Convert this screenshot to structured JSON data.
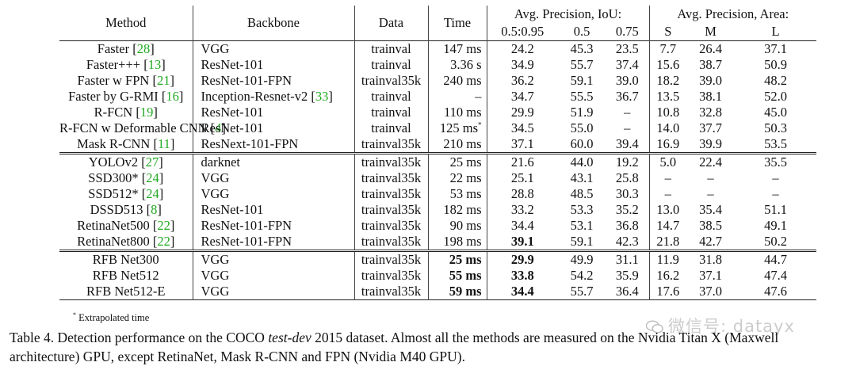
{
  "header": {
    "method": "Method",
    "backbone": "Backbone",
    "data": "Data",
    "time": "Time",
    "ap_iou": "Avg. Precision, IoU:",
    "ap_area": "Avg. Precision, Area:",
    "iou_cols": [
      "0.5:0.95",
      "0.5",
      "0.75"
    ],
    "area_cols": [
      "S",
      "M",
      "L"
    ]
  },
  "groups": [
    [
      {
        "method": "Faster",
        "cite": "28",
        "backbone": "VGG",
        "data": "trainval",
        "time": "147 ms",
        "ap": "24.2",
        "ap50": "45.3",
        "ap75": "23.5",
        "s": "7.7",
        "m": "26.4",
        "l": "37.1"
      },
      {
        "method": "Faster+++",
        "cite": "13",
        "backbone": "ResNet-101",
        "data": "trainval",
        "time": "3.36 s",
        "ap": "34.9",
        "ap50": "55.7",
        "ap75": "37.4",
        "s": "15.6",
        "m": "38.7",
        "l": "50.9"
      },
      {
        "method": "Faster w FPN",
        "cite": "21",
        "backbone": "ResNet-101-FPN",
        "data": "trainval35k",
        "time": "240 ms",
        "ap": "36.2",
        "ap50": "59.1",
        "ap75": "39.0",
        "s": "18.2",
        "m": "39.0",
        "l": "48.2"
      },
      {
        "method": "Faster by G-RMI",
        "cite": "16",
        "backbone": "Inception-Resnet-v2",
        "backbone_cite": "33",
        "data": "trainval",
        "time": "–",
        "ap": "34.7",
        "ap50": "55.5",
        "ap75": "36.7",
        "s": "13.5",
        "m": "38.1",
        "l": "52.0"
      },
      {
        "method": "R-FCN",
        "cite": "19",
        "backbone": "ResNet-101",
        "data": "trainval",
        "time": "110 ms",
        "ap": "29.9",
        "ap50": "51.9",
        "ap75": "–",
        "s": "10.8",
        "m": "32.8",
        "l": "45.0"
      },
      {
        "method": "R-FCN w Deformable CNN",
        "cite": "4",
        "backbone": "ResNet-101",
        "data": "trainval",
        "time": "125 ms",
        "time_sup": "*",
        "ap": "34.5",
        "ap50": "55.0",
        "ap75": "–",
        "s": "14.0",
        "m": "37.7",
        "l": "50.3"
      },
      {
        "method": "Mask R-CNN",
        "cite": "11",
        "backbone": "ResNext-101-FPN",
        "data": "trainval35k",
        "time": "210 ms",
        "ap": "37.1",
        "ap50": "60.0",
        "ap75": "39.4",
        "s": "16.9",
        "m": "39.9",
        "l": "53.5"
      }
    ],
    [
      {
        "method": "YOLOv2",
        "cite": "27",
        "backbone": "darknet",
        "data": "trainval35k",
        "time": "25 ms",
        "ap": "21.6",
        "ap50": "44.0",
        "ap75": "19.2",
        "s": "5.0",
        "m": "22.4",
        "l": "35.5"
      },
      {
        "method": "SSD300*",
        "cite": "24",
        "backbone": "VGG",
        "data": "trainval35k",
        "time": "22 ms",
        "ap": "25.1",
        "ap50": "43.1",
        "ap75": "25.8",
        "s": "–",
        "m": "–",
        "l": "–"
      },
      {
        "method": "SSD512*",
        "cite": "24",
        "backbone": "VGG",
        "data": "trainval35k",
        "time": "53 ms",
        "ap": "28.8",
        "ap50": "48.5",
        "ap75": "30.3",
        "s": "–",
        "m": "–",
        "l": "–"
      },
      {
        "method": "DSSD513",
        "cite": "8",
        "backbone": "ResNet-101",
        "data": "trainval35k",
        "time": "182 ms",
        "ap": "33.2",
        "ap50": "53.3",
        "ap75": "35.2",
        "s": "13.0",
        "m": "35.4",
        "l": "51.1"
      },
      {
        "method": "RetinaNet500",
        "cite": "22",
        "backbone": "ResNet-101-FPN",
        "data": "trainval35k",
        "time": "90 ms",
        "ap": "34.4",
        "ap50": "53.1",
        "ap75": "36.8",
        "s": "14.7",
        "m": "38.5",
        "l": "49.1"
      },
      {
        "method": "RetinaNet800",
        "cite": "22",
        "backbone": "ResNet-101-FPN",
        "data": "trainval35k",
        "time": "198 ms",
        "ap": "39.1",
        "ap_bold": true,
        "ap50": "59.1",
        "ap75": "42.3",
        "s": "21.8",
        "m": "42.7",
        "l": "50.2"
      }
    ],
    [
      {
        "method": "RFB Net300",
        "backbone": "VGG",
        "data": "trainval35k",
        "time": "25 ms",
        "time_bold": true,
        "ap": "29.9",
        "ap_bold": true,
        "ap50": "49.9",
        "ap75": "31.1",
        "s": "11.9",
        "m": "31.8",
        "l": "44.7"
      },
      {
        "method": "RFB Net512",
        "backbone": "VGG",
        "data": "trainval35k",
        "time": "55 ms",
        "time_bold": true,
        "ap": "33.8",
        "ap_bold": true,
        "ap50": "54.2",
        "ap75": "35.9",
        "s": "16.2",
        "m": "37.1",
        "l": "47.4"
      },
      {
        "method": "RFB Net512-E",
        "backbone": "VGG",
        "data": "trainval35k",
        "time": "59 ms",
        "time_bold": true,
        "ap": "34.4",
        "ap_bold": true,
        "ap50": "55.7",
        "ap75": "36.4",
        "s": "17.6",
        "m": "37.0",
        "l": "47.6"
      }
    ]
  ],
  "footnote": {
    "mark": "*",
    "text": "Extrapolated time"
  },
  "caption": {
    "prefix": "Table 4. Detection performance on the COCO ",
    "italic": "test-dev",
    "line1_rest": " 2015 dataset. Almost all the methods are measured on the Nvidia Titan X (Maxwell",
    "line2": "architecture) GPU, except RetinaNet, Mask R-CNN and FPN (Nvidia M40 GPU)."
  },
  "watermark": {
    "text": "微信号: datayx",
    "icon": "wechat-logo-icon"
  }
}
